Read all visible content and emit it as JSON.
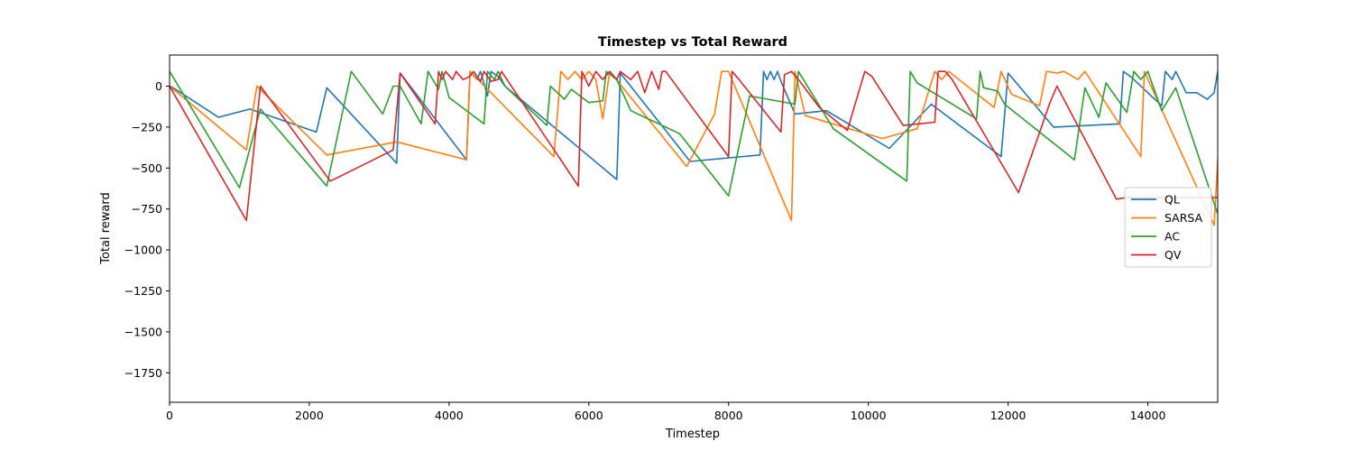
{
  "chart_data": {
    "type": "line",
    "title": "Timestep vs Total Reward",
    "xlabel": "Timestep",
    "ylabel": "Total reward",
    "xlim": [
      0,
      15000
    ],
    "ylim": [
      -1930,
      190
    ],
    "xticks": [
      0,
      2000,
      4000,
      6000,
      8000,
      10000,
      12000,
      14000
    ],
    "yticks": [
      0,
      -250,
      -500,
      -750,
      -1000,
      -1250,
      -1500,
      -1750
    ],
    "xtick_labels": [
      "0",
      "2000",
      "4000",
      "6000",
      "8000",
      "10000",
      "12000",
      "14000"
    ],
    "ytick_labels": [
      "0",
      "−250",
      "−500",
      "−750",
      "−1000",
      "−1250",
      "−1500",
      "−1750"
    ],
    "grid": false,
    "legend_position": "right",
    "series": [
      {
        "name": "QL",
        "color": "#1f77b4",
        "points": [
          [
            0,
            0
          ],
          [
            50,
            -10
          ],
          [
            700,
            -190
          ],
          [
            1150,
            -140
          ],
          [
            2100,
            -280
          ],
          [
            2250,
            -10
          ],
          [
            3250,
            -470
          ],
          [
            3300,
            80
          ],
          [
            4250,
            -450
          ],
          [
            4300,
            90
          ],
          [
            4400,
            40
          ],
          [
            4450,
            90
          ],
          [
            4550,
            -60
          ],
          [
            4600,
            90
          ],
          [
            4700,
            60
          ],
          [
            4800,
            0
          ],
          [
            6400,
            -570
          ],
          [
            6450,
            80
          ],
          [
            7450,
            -460
          ],
          [
            8450,
            -420
          ],
          [
            8500,
            90
          ],
          [
            8550,
            40
          ],
          [
            8600,
            90
          ],
          [
            8650,
            40
          ],
          [
            8700,
            90
          ],
          [
            8750,
            30
          ],
          [
            8950,
            -170
          ],
          [
            9400,
            -150
          ],
          [
            10300,
            -380
          ],
          [
            10900,
            -110
          ],
          [
            11900,
            -430
          ],
          [
            12000,
            80
          ],
          [
            12650,
            -250
          ],
          [
            13600,
            -230
          ],
          [
            13650,
            90
          ],
          [
            13750,
            60
          ],
          [
            14200,
            -120
          ],
          [
            14250,
            90
          ],
          [
            14350,
            40
          ],
          [
            14400,
            90
          ],
          [
            14550,
            -40
          ],
          [
            14700,
            -40
          ],
          [
            14850,
            -80
          ],
          [
            14950,
            -40
          ],
          [
            15000,
            90
          ]
        ]
      },
      {
        "name": "SARSA",
        "color": "#ff7f0e",
        "points": [
          [
            0,
            0
          ],
          [
            1100,
            -390
          ],
          [
            1250,
            0
          ],
          [
            2250,
            -420
          ],
          [
            3250,
            -340
          ],
          [
            4250,
            -450
          ],
          [
            4300,
            90
          ],
          [
            5500,
            -430
          ],
          [
            5600,
            90
          ],
          [
            5700,
            40
          ],
          [
            5800,
            90
          ],
          [
            5900,
            40
          ],
          [
            6000,
            90
          ],
          [
            6100,
            40
          ],
          [
            6200,
            -200
          ],
          [
            6300,
            90
          ],
          [
            7400,
            -490
          ],
          [
            7500,
            -410
          ],
          [
            7800,
            -170
          ],
          [
            7900,
            90
          ],
          [
            8000,
            90
          ],
          [
            8900,
            -820
          ],
          [
            8950,
            90
          ],
          [
            9100,
            -180
          ],
          [
            10200,
            -320
          ],
          [
            10700,
            -260
          ],
          [
            10950,
            90
          ],
          [
            11050,
            40
          ],
          [
            11150,
            90
          ],
          [
            11800,
            -130
          ],
          [
            11900,
            90
          ],
          [
            12050,
            -50
          ],
          [
            12450,
            -120
          ],
          [
            12550,
            90
          ],
          [
            12700,
            80
          ],
          [
            12800,
            90
          ],
          [
            13000,
            40
          ],
          [
            13100,
            90
          ],
          [
            13900,
            -430
          ],
          [
            13950,
            90
          ],
          [
            14950,
            -850
          ],
          [
            15000,
            -450
          ]
        ]
      },
      {
        "name": "AC",
        "color": "#2ca02c",
        "points": [
          [
            0,
            90
          ],
          [
            1000,
            -620
          ],
          [
            1300,
            -140
          ],
          [
            2250,
            -610
          ],
          [
            2600,
            90
          ],
          [
            3050,
            -170
          ],
          [
            3200,
            0
          ],
          [
            3300,
            0
          ],
          [
            3600,
            -230
          ],
          [
            3700,
            90
          ],
          [
            3850,
            -20
          ],
          [
            3900,
            90
          ],
          [
            4000,
            -70
          ],
          [
            4500,
            -230
          ],
          [
            4550,
            90
          ],
          [
            4650,
            40
          ],
          [
            4700,
            90
          ],
          [
            4800,
            0
          ],
          [
            5400,
            -240
          ],
          [
            5450,
            0
          ],
          [
            5650,
            -80
          ],
          [
            5750,
            -20
          ],
          [
            6000,
            -100
          ],
          [
            6200,
            -90
          ],
          [
            6250,
            90
          ],
          [
            6400,
            40
          ],
          [
            6600,
            -150
          ],
          [
            7300,
            -290
          ],
          [
            8000,
            -670
          ],
          [
            8300,
            -60
          ],
          [
            8950,
            -110
          ],
          [
            9000,
            90
          ],
          [
            9500,
            -260
          ],
          [
            10550,
            -580
          ],
          [
            10600,
            90
          ],
          [
            10700,
            20
          ],
          [
            11550,
            -200
          ],
          [
            11600,
            90
          ],
          [
            11650,
            -10
          ],
          [
            11850,
            -30
          ],
          [
            11950,
            -110
          ],
          [
            12950,
            -450
          ],
          [
            13100,
            -10
          ],
          [
            13300,
            -190
          ],
          [
            13400,
            20
          ],
          [
            13700,
            -160
          ],
          [
            13800,
            90
          ],
          [
            13900,
            40
          ],
          [
            14000,
            90
          ],
          [
            14200,
            -150
          ],
          [
            14400,
            -10
          ],
          [
            15000,
            -780
          ]
        ]
      },
      {
        "name": "QV",
        "color": "#d62728",
        "points": [
          [
            0,
            0
          ],
          [
            1100,
            -820
          ],
          [
            1300,
            0
          ],
          [
            2300,
            -580
          ],
          [
            3200,
            -390
          ],
          [
            3300,
            80
          ],
          [
            3800,
            -230
          ],
          [
            3850,
            90
          ],
          [
            3900,
            40
          ],
          [
            3950,
            90
          ],
          [
            4050,
            40
          ],
          [
            4100,
            90
          ],
          [
            4200,
            40
          ],
          [
            4300,
            60
          ],
          [
            4350,
            90
          ],
          [
            4450,
            30
          ],
          [
            4500,
            90
          ],
          [
            4600,
            30
          ],
          [
            4700,
            40
          ],
          [
            4750,
            90
          ],
          [
            5850,
            -610
          ],
          [
            5900,
            90
          ],
          [
            6000,
            0
          ],
          [
            6100,
            90
          ],
          [
            6200,
            40
          ],
          [
            6300,
            90
          ],
          [
            6400,
            40
          ],
          [
            6450,
            90
          ],
          [
            6600,
            40
          ],
          [
            6700,
            90
          ],
          [
            6800,
            -40
          ],
          [
            6900,
            90
          ],
          [
            7000,
            -20
          ],
          [
            7050,
            90
          ],
          [
            7100,
            90
          ],
          [
            8000,
            -430
          ],
          [
            8050,
            90
          ],
          [
            8150,
            40
          ],
          [
            8750,
            -280
          ],
          [
            8800,
            70
          ],
          [
            8900,
            90
          ],
          [
            9000,
            40
          ],
          [
            9300,
            -130
          ],
          [
            9700,
            -270
          ],
          [
            9950,
            90
          ],
          [
            10050,
            60
          ],
          [
            10500,
            -240
          ],
          [
            10950,
            -220
          ],
          [
            11000,
            90
          ],
          [
            11100,
            90
          ],
          [
            11200,
            40
          ],
          [
            12150,
            -650
          ],
          [
            12600,
            -100
          ],
          [
            12700,
            0
          ],
          [
            13550,
            -690
          ],
          [
            13700,
            -680
          ],
          [
            15000,
            -680
          ]
        ]
      }
    ]
  }
}
